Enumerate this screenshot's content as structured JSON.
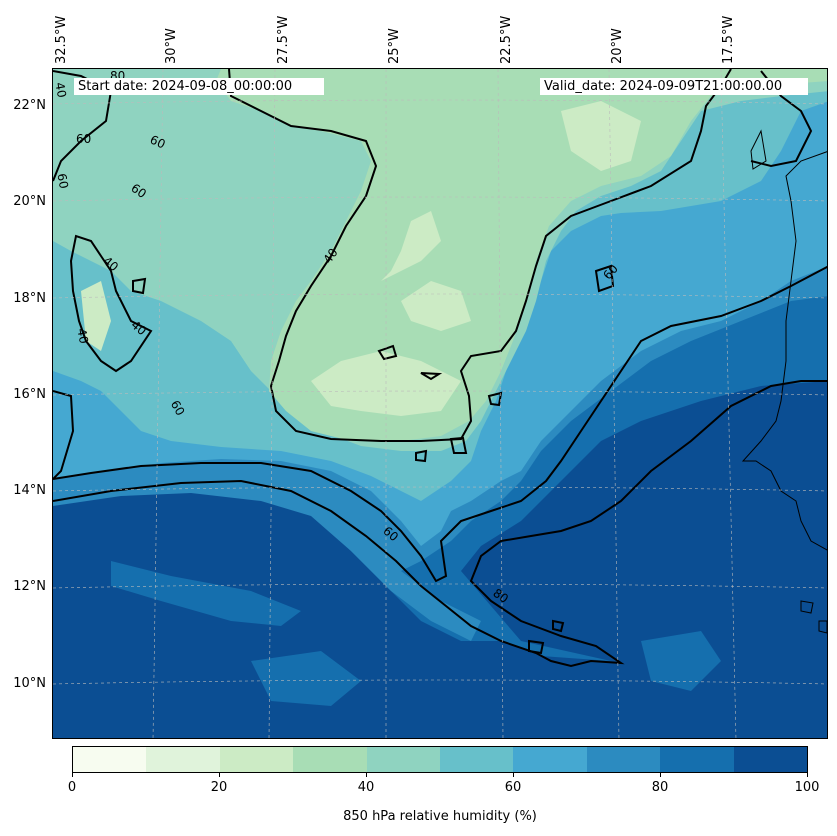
{
  "map": {
    "start_label": "Start date: 2024-09-08_00:00:00",
    "valid_label": "Valid_date: 2024-09-09T21:00:00.00",
    "lon_labels": [
      "32.5°W",
      "30°W",
      "27.5°W",
      "25°W",
      "22.5°W",
      "20°W",
      "17.5°W"
    ],
    "lat_labels": [
      "22°N",
      "20°N",
      "18°N",
      "16°N",
      "14°N",
      "12°N",
      "10°N"
    ],
    "contour_labels": [
      "80",
      "60",
      "60",
      "60",
      "40",
      "40",
      "40",
      "40",
      "60",
      "60",
      "40",
      "60",
      "80"
    ],
    "colors": {
      "c0": "#f7fcf0",
      "c1": "#e0f3db",
      "c2": "#ccebc5",
      "c3": "#a8ddb5",
      "c4": "#7bccc4",
      "c5": "#4eb3d3",
      "c6": "#2b8cbe",
      "c7": "#0868ac",
      "c8": "#084081",
      "c9": "#06396f"
    }
  },
  "colorbar": {
    "title": "850 hPa relative humidity (%)",
    "tick_labels": [
      "0",
      "20",
      "40",
      "60",
      "80",
      "100"
    ],
    "colors": [
      "#f7fcf0",
      "#e0f3db",
      "#ccebc5",
      "#a8ddb5",
      "#8fd3c0",
      "#67c0ca",
      "#45a8d1",
      "#2c8bc0",
      "#156fae",
      "#0b4e93"
    ]
  }
}
